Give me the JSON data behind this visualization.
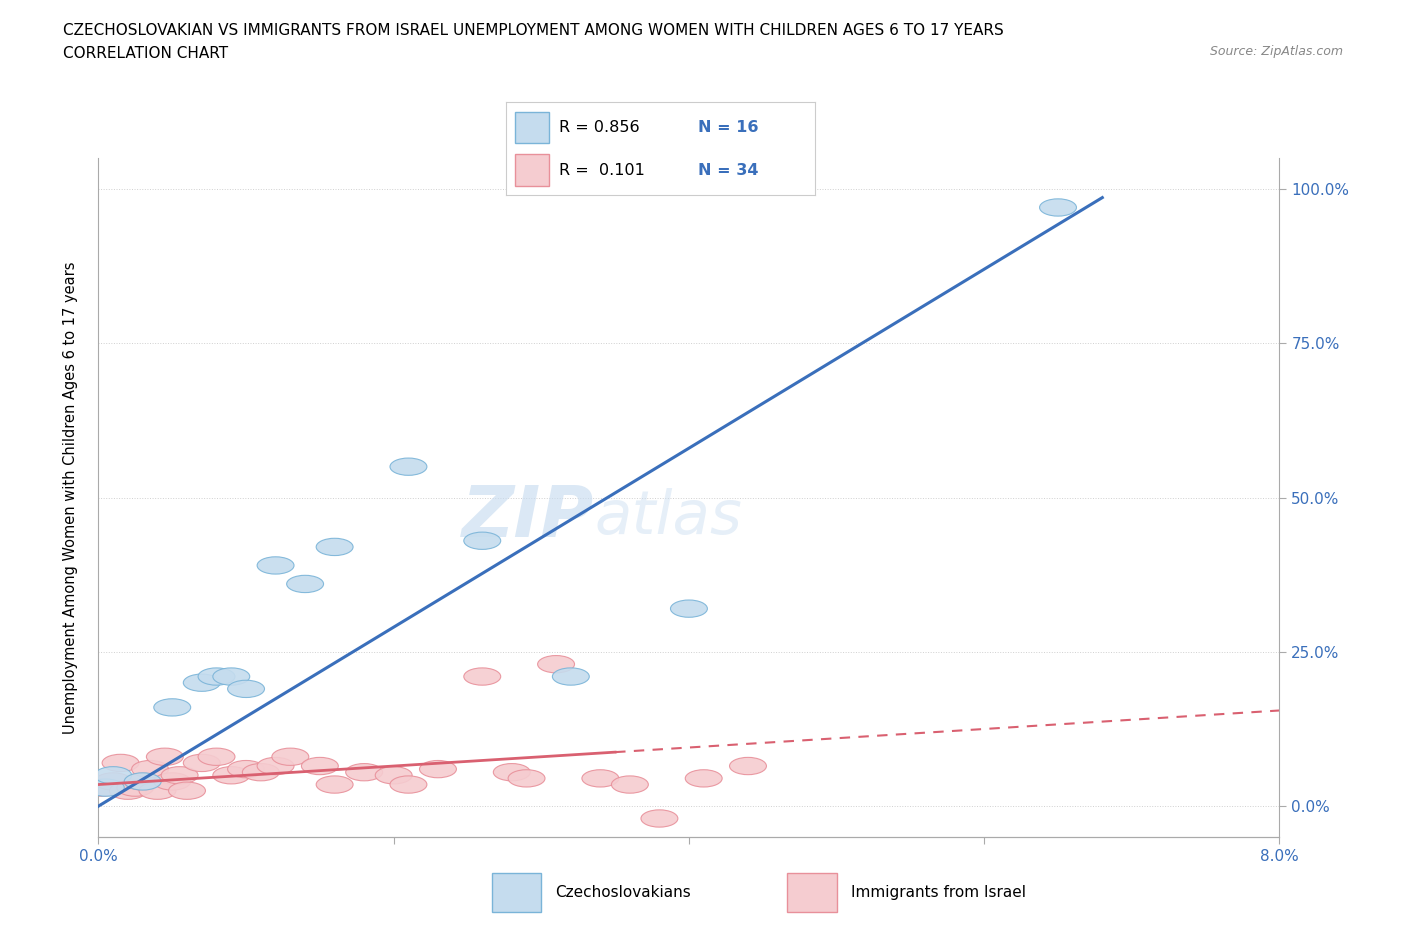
{
  "title_line1": "CZECHOSLOVAKIAN VS IMMIGRANTS FROM ISRAEL UNEMPLOYMENT AMONG WOMEN WITH CHILDREN AGES 6 TO 17 YEARS",
  "title_line2": "CORRELATION CHART",
  "source_text": "Source: ZipAtlas.com",
  "ylabel": "Unemployment Among Women with Children Ages 6 to 17 years",
  "xlim": [
    0.0,
    0.08
  ],
  "ylim": [
    0.0,
    1.05
  ],
  "xticks": [
    0.0,
    0.02,
    0.04,
    0.06,
    0.08
  ],
  "yticks": [
    0.0,
    0.25,
    0.5,
    0.75,
    1.0
  ],
  "background_color": "#ffffff",
  "watermark_text_1": "ZIP",
  "watermark_text_2": "atlas",
  "blue_color": "#7ab4d8",
  "blue_fill": "#c5dcee",
  "pink_color": "#e8909a",
  "pink_fill": "#f5ccd0",
  "blue_line_color": "#3a6fbb",
  "pink_line_color": "#d96070",
  "grid_color": "#d0d0d0",
  "R_blue": 0.856,
  "N_blue": 16,
  "R_pink": 0.101,
  "N_pink": 34,
  "legend_label_blue": "Czechoslovakians",
  "legend_label_pink": "Immigrants from Israel",
  "blue_points_x": [
    0.0005,
    0.001,
    0.003,
    0.005,
    0.007,
    0.008,
    0.009,
    0.01,
    0.012,
    0.014,
    0.016,
    0.021,
    0.026,
    0.032,
    0.04,
    0.065
  ],
  "blue_points_y": [
    0.03,
    0.05,
    0.04,
    0.16,
    0.2,
    0.21,
    0.21,
    0.19,
    0.39,
    0.36,
    0.42,
    0.55,
    0.43,
    0.21,
    0.32,
    0.97
  ],
  "pink_points_x": [
    0.0002,
    0.001,
    0.0015,
    0.002,
    0.0025,
    0.003,
    0.0035,
    0.004,
    0.0045,
    0.005,
    0.0055,
    0.006,
    0.007,
    0.008,
    0.009,
    0.01,
    0.011,
    0.012,
    0.013,
    0.015,
    0.016,
    0.018,
    0.02,
    0.021,
    0.023,
    0.026,
    0.028,
    0.029,
    0.031,
    0.034,
    0.036,
    0.038,
    0.041,
    0.044
  ],
  "pink_points_y": [
    0.03,
    0.04,
    0.07,
    0.025,
    0.03,
    0.04,
    0.06,
    0.025,
    0.08,
    0.04,
    0.05,
    0.025,
    0.07,
    0.08,
    0.05,
    0.06,
    0.055,
    0.065,
    0.08,
    0.065,
    0.035,
    0.055,
    0.05,
    0.035,
    0.06,
    0.21,
    0.055,
    0.045,
    0.23,
    0.045,
    0.035,
    -0.02,
    0.045,
    0.065
  ],
  "blue_line_x_start": 0.0,
  "blue_line_x_end": 0.068,
  "blue_line_y_intercept": 0.0,
  "blue_line_slope": 14.5,
  "pink_line_x_solid_start": 0.0,
  "pink_line_x_solid_end": 0.035,
  "pink_line_x_dashed_start": 0.035,
  "pink_line_x_dashed_end": 0.08,
  "pink_line_y_intercept": 0.035,
  "pink_line_slope": 1.5
}
